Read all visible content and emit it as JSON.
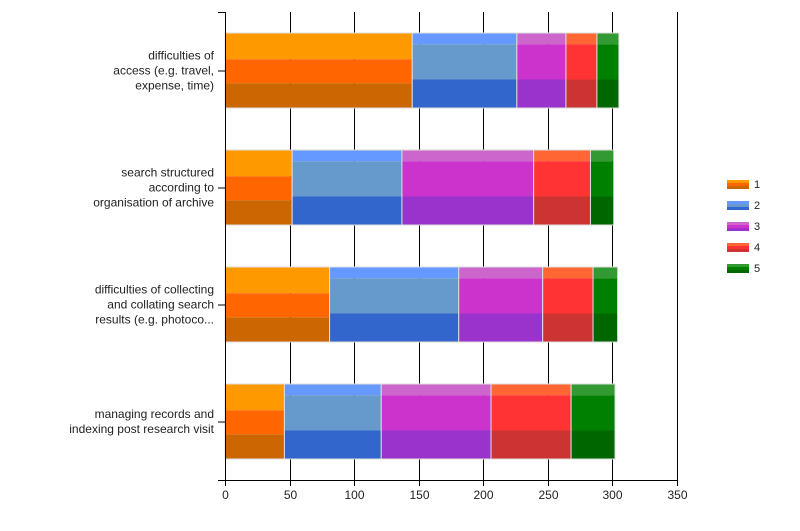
{
  "chart_data": {
    "type": "bar",
    "orientation": "horizontal",
    "stacked": true,
    "title": "",
    "xlabel": "",
    "ylabel": "",
    "xlim": [
      0,
      350
    ],
    "x_ticks": [
      0,
      50,
      100,
      150,
      200,
      250,
      300,
      350
    ],
    "grid": true,
    "legend_position": "right",
    "categories": [
      [
        "difficulties of",
        "access (e.g. travel,",
        "expense, time)"
      ],
      [
        "search structured",
        "according to",
        "organisation of archive"
      ],
      [
        "difficulties of collecting",
        "and collating search",
        "results (e.g. photoco..."
      ],
      [
        "managing records and",
        "indexing post research visit"
      ]
    ],
    "series": [
      {
        "name": "1",
        "color": "#ff6600",
        "shades": [
          "#ff9900",
          "#ff6600",
          "#cc6600"
        ],
        "values": [
          145,
          52,
          81,
          46
        ]
      },
      {
        "name": "2",
        "color": "#3366cc",
        "shades": [
          "#6699ff",
          "#6699cc",
          "#3366cc"
        ],
        "values": [
          81,
          85,
          100,
          75
        ]
      },
      {
        "name": "3",
        "color": "#9933cc",
        "shades": [
          "#cc66cc",
          "#cc33cc",
          "#9933cc"
        ],
        "values": [
          38,
          102,
          65,
          85
        ]
      },
      {
        "name": "4",
        "color": "#ff6633",
        "shades": [
          "#ff6633",
          "#ff3333",
          "#cc3333"
        ],
        "values": [
          24,
          44,
          39,
          62
        ]
      },
      {
        "name": "5",
        "color": "#008000",
        "shades": [
          "#339933",
          "#008000",
          "#006600"
        ],
        "values": [
          17,
          18,
          19,
          34
        ]
      }
    ]
  }
}
